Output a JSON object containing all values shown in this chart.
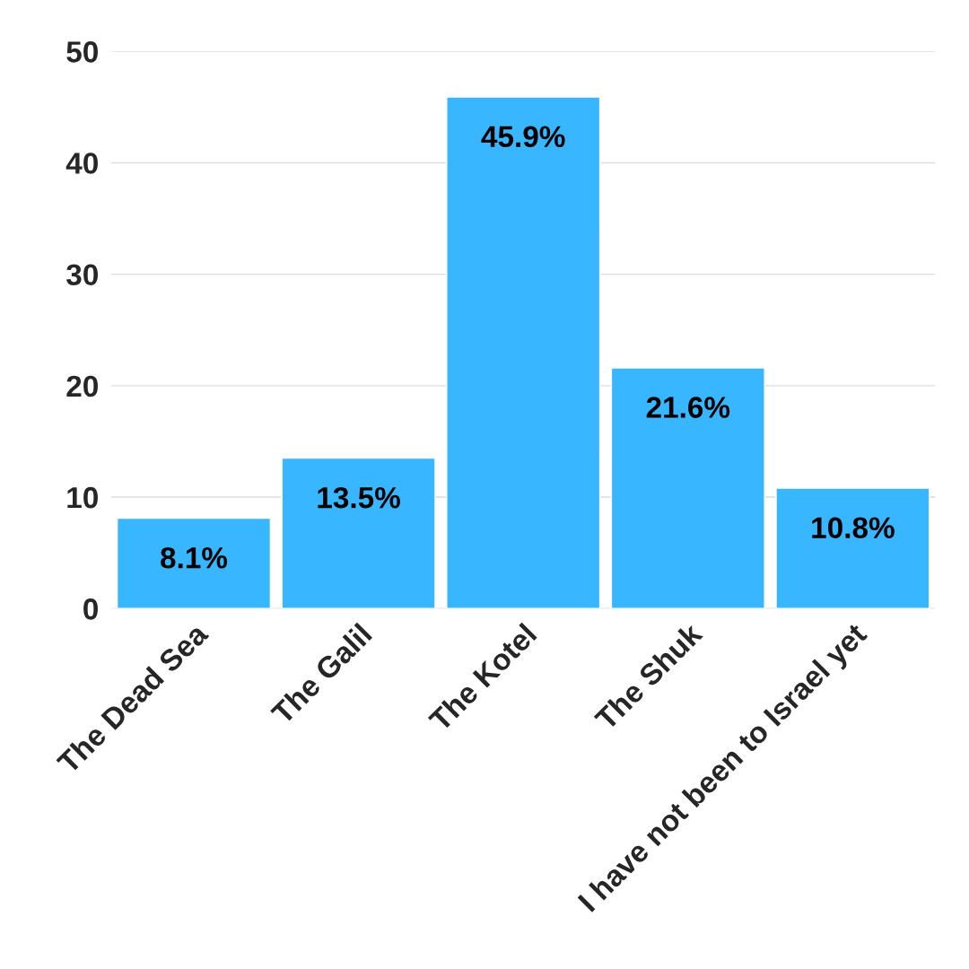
{
  "chart_data": {
    "type": "bar",
    "categories": [
      "The Dead Sea",
      "The Galil",
      "The Kotel",
      "The Shuk",
      "I have not been to Israel yet"
    ],
    "values": [
      8.1,
      13.5,
      45.9,
      21.6,
      10.8
    ],
    "value_labels": [
      "8.1%",
      "13.5%",
      "45.9%",
      "21.6%",
      "10.8%"
    ],
    "color": "#38b6ff",
    "ylim": [
      0,
      50
    ],
    "yticks": [
      0,
      10,
      20,
      30,
      40,
      50
    ],
    "grid": "y",
    "legend": false
  }
}
